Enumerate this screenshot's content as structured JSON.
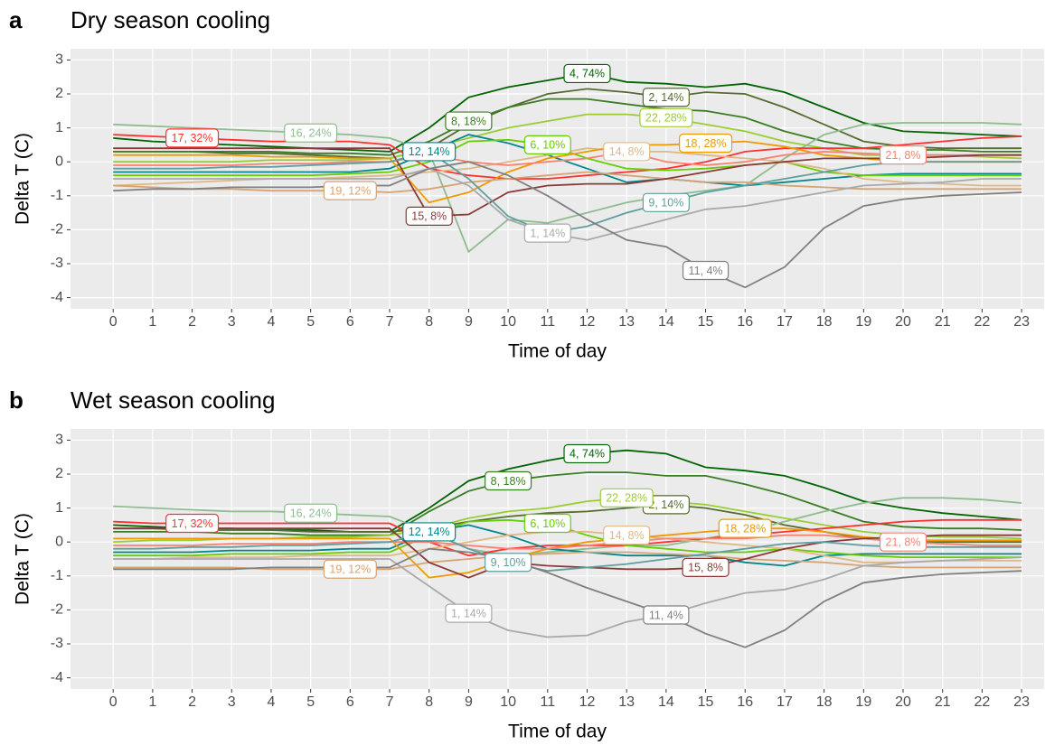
{
  "chart_data": [
    {
      "type": "line",
      "panel_label": "a",
      "title": "Dry season cooling",
      "x_label": "Time of day",
      "y_label": "Delta T (C)",
      "x": [
        0,
        1,
        2,
        3,
        4,
        5,
        6,
        7,
        8,
        9,
        10,
        11,
        12,
        13,
        14,
        15,
        16,
        17,
        18,
        19,
        20,
        21,
        22,
        23
      ],
      "xlim": [
        -1.08,
        23.57
      ],
      "ylim": [
        -4.33,
        3.33
      ],
      "xticks": [
        0,
        1,
        2,
        3,
        4,
        5,
        6,
        7,
        8,
        9,
        10,
        11,
        12,
        13,
        14,
        15,
        16,
        17,
        18,
        19,
        20,
        21,
        22,
        23
      ],
      "yticks": [
        -4,
        -3,
        -2,
        -1,
        0,
        1,
        2,
        3
      ],
      "grid": true,
      "series": [
        {
          "name": "4, 74%",
          "color": "#006400",
          "values": [
            0.7,
            0.6,
            0.55,
            0.5,
            0.45,
            0.4,
            0.35,
            0.3,
            1.0,
            1.9,
            2.2,
            2.4,
            2.6,
            2.35,
            2.3,
            2.2,
            2.3,
            2.05,
            1.6,
            1.15,
            0.9,
            0.85,
            0.8,
            0.75
          ]
        },
        {
          "name": "2, 14%",
          "color": "#556b2f",
          "values": [
            0.3,
            0.3,
            0.3,
            0.25,
            0.25,
            0.2,
            0.15,
            0.1,
            0.4,
            1.1,
            1.6,
            2.0,
            2.15,
            2.05,
            1.9,
            2.05,
            2.0,
            1.6,
            1.1,
            0.6,
            0.45,
            0.4,
            0.4,
            0.4
          ]
        },
        {
          "name": "8, 18%",
          "color": "#3b7d23",
          "values": [
            0.3,
            0.3,
            0.3,
            0.3,
            0.3,
            0.25,
            0.25,
            0.2,
            0.6,
            1.2,
            1.6,
            1.85,
            1.85,
            1.7,
            1.55,
            1.5,
            1.3,
            0.9,
            0.6,
            0.4,
            0.35,
            0.35,
            0.3,
            0.3
          ]
        },
        {
          "name": "22, 28%",
          "color": "#9acd32",
          "values": [
            0.0,
            0.0,
            0.0,
            0.0,
            0.05,
            0.05,
            0.05,
            0.1,
            0.4,
            0.7,
            1.0,
            1.2,
            1.4,
            1.4,
            1.3,
            1.1,
            0.9,
            0.6,
            0.4,
            0.2,
            0.2,
            0.2,
            0.15,
            0.1
          ]
        },
        {
          "name": "16, 24%",
          "color": "#8fbc8f",
          "values": [
            1.1,
            1.05,
            1.0,
            0.95,
            0.9,
            0.85,
            0.8,
            0.7,
            0.3,
            -2.65,
            -1.7,
            -1.8,
            -1.5,
            -1.2,
            -1.0,
            -0.85,
            -0.7,
            0.1,
            0.8,
            1.1,
            1.15,
            1.15,
            1.15,
            1.1
          ]
        },
        {
          "name": "17, 32%",
          "color": "#ff3030",
          "values": [
            0.8,
            0.75,
            0.7,
            0.65,
            0.6,
            0.6,
            0.6,
            0.5,
            -0.2,
            -0.4,
            -0.5,
            -0.5,
            -0.4,
            -0.3,
            -0.2,
            0.0,
            0.3,
            0.4,
            0.4,
            0.4,
            0.5,
            0.6,
            0.7,
            0.75
          ]
        },
        {
          "name": "12, 14%",
          "color": "#00868b",
          "values": [
            -0.3,
            -0.3,
            -0.3,
            -0.3,
            -0.3,
            -0.3,
            -0.3,
            -0.2,
            0.3,
            0.8,
            0.55,
            0.2,
            -0.2,
            -0.6,
            -0.5,
            -0.6,
            -0.7,
            -0.6,
            -0.5,
            -0.4,
            -0.35,
            -0.35,
            -0.35,
            -0.35
          ]
        },
        {
          "name": "6, 10%",
          "color": "#66cd00",
          "values": [
            -0.4,
            -0.4,
            -0.4,
            -0.4,
            -0.4,
            -0.4,
            -0.35,
            -0.3,
            0.0,
            0.6,
            0.65,
            0.5,
            0.1,
            -0.2,
            -0.25,
            -0.2,
            -0.1,
            0.0,
            -0.3,
            -0.4,
            -0.4,
            -0.4,
            -0.4,
            -0.4
          ]
        },
        {
          "name": "14, 8%",
          "color": "#deb887",
          "values": [
            -0.7,
            -0.65,
            -0.6,
            -0.55,
            -0.5,
            -0.5,
            -0.45,
            -0.4,
            -0.3,
            -0.2,
            0.0,
            0.2,
            0.4,
            0.3,
            0.3,
            0.2,
            0.1,
            0.0,
            -0.2,
            -0.5,
            -0.6,
            -0.65,
            -0.7,
            -0.7
          ]
        },
        {
          "name": "18, 28%",
          "color": "#ee9a00",
          "values": [
            0.2,
            0.2,
            0.2,
            0.2,
            0.15,
            0.15,
            0.1,
            0.1,
            -1.2,
            -0.9,
            -0.3,
            0.1,
            0.3,
            0.5,
            0.5,
            0.55,
            0.6,
            0.45,
            0.2,
            0.1,
            0.0,
            0.0,
            0.0,
            0.0
          ]
        },
        {
          "name": "21, 8%",
          "color": "#fa8072",
          "values": [
            -0.1,
            -0.1,
            -0.1,
            -0.1,
            -0.05,
            -0.05,
            0.0,
            0.0,
            0.2,
            0.0,
            -0.1,
            0.0,
            0.1,
            0.3,
            0.0,
            -0.1,
            0.0,
            0.2,
            0.3,
            0.25,
            0.2,
            0.2,
            0.2,
            0.2
          ]
        },
        {
          "name": "19, 12%",
          "color": "#d8a373",
          "values": [
            -0.7,
            -0.75,
            -0.8,
            -0.8,
            -0.85,
            -0.85,
            -0.85,
            -0.9,
            -0.8,
            -0.6,
            -0.5,
            -0.4,
            -0.3,
            -0.4,
            -0.5,
            -0.6,
            -0.6,
            -0.7,
            -0.75,
            -0.8,
            -0.8,
            -0.8,
            -0.8,
            -0.8
          ]
        },
        {
          "name": "15, 8%",
          "color": "#8b3a3a",
          "values": [
            0.4,
            0.4,
            0.4,
            0.4,
            0.4,
            0.4,
            0.4,
            0.4,
            -1.6,
            -1.55,
            -0.9,
            -0.7,
            -0.65,
            -0.65,
            -0.5,
            -0.3,
            -0.1,
            0.0,
            0.1,
            0.1,
            0.1,
            0.15,
            0.2,
            0.2
          ]
        },
        {
          "name": "9, 10%",
          "color": "#5f9ea0",
          "values": [
            -0.2,
            -0.2,
            -0.2,
            -0.15,
            -0.15,
            -0.1,
            -0.05,
            0.0,
            0.3,
            -0.5,
            -1.6,
            -2.1,
            -1.9,
            -1.5,
            -1.2,
            -0.9,
            -0.7,
            -0.5,
            -0.3,
            -0.1,
            0.0,
            0.0,
            0.0,
            0.0
          ]
        },
        {
          "name": "1, 14%",
          "color": "#a9a9a9",
          "values": [
            -0.5,
            -0.5,
            -0.5,
            -0.5,
            -0.5,
            -0.5,
            -0.5,
            -0.5,
            -0.2,
            -0.7,
            -1.7,
            -2.1,
            -2.3,
            -2.0,
            -1.7,
            -1.4,
            -1.3,
            -1.1,
            -0.9,
            -0.7,
            -0.65,
            -0.6,
            -0.5,
            -0.5
          ]
        },
        {
          "name": "11, 4%",
          "color": "#808080",
          "values": [
            -0.85,
            -0.8,
            -0.8,
            -0.75,
            -0.75,
            -0.75,
            -0.7,
            -0.7,
            -0.2,
            0.0,
            -0.4,
            -1.0,
            -1.7,
            -2.3,
            -2.5,
            -3.2,
            -3.7,
            -3.1,
            -1.95,
            -1.3,
            -1.1,
            -1.0,
            -0.95,
            -0.9
          ]
        }
      ]
    },
    {
      "type": "line",
      "panel_label": "b",
      "title": "Wet season cooling",
      "x_label": "Time of day",
      "y_label": "Delta T (C)",
      "x": [
        0,
        1,
        2,
        3,
        4,
        5,
        6,
        7,
        8,
        9,
        10,
        11,
        12,
        13,
        14,
        15,
        16,
        17,
        18,
        19,
        20,
        21,
        22,
        23
      ],
      "xlim": [
        -1.08,
        23.57
      ],
      "ylim": [
        -4.33,
        3.33
      ],
      "xticks": [
        0,
        1,
        2,
        3,
        4,
        5,
        6,
        7,
        8,
        9,
        10,
        11,
        12,
        13,
        14,
        15,
        16,
        17,
        18,
        19,
        20,
        21,
        22,
        23
      ],
      "yticks": [
        -4,
        -3,
        -2,
        -1,
        0,
        1,
        2,
        3
      ],
      "grid": true,
      "series": [
        {
          "name": "4, 74%",
          "color": "#006400",
          "values": [
            0.5,
            0.45,
            0.4,
            0.4,
            0.35,
            0.35,
            0.3,
            0.3,
            1.0,
            1.8,
            2.15,
            2.4,
            2.6,
            2.7,
            2.6,
            2.2,
            2.1,
            1.95,
            1.6,
            1.2,
            1.0,
            0.85,
            0.75,
            0.65
          ]
        },
        {
          "name": "2, 14%",
          "color": "#556b2f",
          "values": [
            0.4,
            0.4,
            0.35,
            0.35,
            0.35,
            0.3,
            0.3,
            0.3,
            0.4,
            0.6,
            0.75,
            0.85,
            0.9,
            1.0,
            1.1,
            1.0,
            0.8,
            0.5,
            0.3,
            0.1,
            0.0,
            0.0,
            0.0,
            0.0
          ]
        },
        {
          "name": "8, 18%",
          "color": "#3b7d23",
          "values": [
            0.3,
            0.3,
            0.3,
            0.25,
            0.25,
            0.2,
            0.2,
            0.2,
            0.9,
            1.5,
            1.8,
            1.95,
            2.05,
            2.05,
            1.95,
            1.95,
            1.7,
            1.4,
            1.0,
            0.6,
            0.45,
            0.4,
            0.4,
            0.35
          ]
        },
        {
          "name": "22, 28%",
          "color": "#9acd32",
          "values": [
            0.0,
            0.05,
            0.05,
            0.1,
            0.1,
            0.15,
            0.15,
            0.2,
            0.4,
            0.7,
            0.9,
            1.0,
            1.2,
            1.3,
            1.2,
            1.1,
            0.9,
            0.7,
            0.5,
            0.3,
            0.2,
            0.15,
            0.15,
            0.1
          ]
        },
        {
          "name": "16, 24%",
          "color": "#8fbc8f",
          "values": [
            1.05,
            1.0,
            0.95,
            0.9,
            0.9,
            0.85,
            0.8,
            0.75,
            0.3,
            -0.2,
            -0.4,
            -0.3,
            -0.2,
            -0.1,
            -0.1,
            0.1,
            0.3,
            0.6,
            0.9,
            1.15,
            1.3,
            1.3,
            1.25,
            1.15
          ]
        },
        {
          "name": "17, 32%",
          "color": "#ff3030",
          "values": [
            0.6,
            0.55,
            0.55,
            0.55,
            0.55,
            0.55,
            0.55,
            0.55,
            0.0,
            -0.4,
            -0.2,
            -0.1,
            -0.1,
            -0.1,
            0.0,
            0.1,
            0.2,
            0.3,
            0.4,
            0.5,
            0.6,
            0.65,
            0.65,
            0.65
          ]
        },
        {
          "name": "12, 14%",
          "color": "#00868b",
          "values": [
            -0.3,
            -0.3,
            -0.3,
            -0.25,
            -0.25,
            -0.25,
            -0.2,
            -0.2,
            0.3,
            0.5,
            0.2,
            -0.2,
            -0.3,
            -0.4,
            -0.4,
            -0.4,
            -0.6,
            -0.7,
            -0.4,
            -0.35,
            -0.35,
            -0.35,
            -0.35,
            -0.35
          ]
        },
        {
          "name": "6, 10%",
          "color": "#66cd00",
          "values": [
            -0.4,
            -0.4,
            -0.4,
            -0.35,
            -0.35,
            -0.35,
            -0.3,
            -0.3,
            0.2,
            0.6,
            0.65,
            0.55,
            0.2,
            -0.1,
            -0.2,
            -0.3,
            -0.3,
            -0.2,
            -0.3,
            -0.4,
            -0.45,
            -0.45,
            -0.45,
            -0.45
          ]
        },
        {
          "name": "14, 8%",
          "color": "#deb887",
          "values": [
            -0.5,
            -0.5,
            -0.45,
            -0.45,
            -0.45,
            -0.4,
            -0.4,
            -0.4,
            -0.2,
            0.0,
            0.2,
            0.3,
            0.3,
            0.2,
            0.1,
            0.0,
            -0.1,
            -0.2,
            -0.4,
            -0.6,
            -0.6,
            -0.55,
            -0.55,
            -0.55
          ]
        },
        {
          "name": "18, 28%",
          "color": "#ee9a00",
          "values": [
            0.1,
            0.1,
            0.1,
            0.1,
            0.1,
            0.1,
            0.1,
            0.1,
            -1.05,
            -0.9,
            -0.5,
            -0.2,
            0.0,
            0.1,
            0.2,
            0.3,
            0.4,
            0.4,
            0.3,
            0.15,
            0.05,
            0.05,
            0.05,
            0.05
          ]
        },
        {
          "name": "21, 8%",
          "color": "#fa8072",
          "values": [
            -0.1,
            -0.1,
            -0.1,
            -0.05,
            -0.05,
            -0.05,
            0.0,
            0.0,
            0.0,
            -0.1,
            -0.2,
            -0.2,
            -0.1,
            0.0,
            0.1,
            0.1,
            0.1,
            0.2,
            0.2,
            0.1,
            0.0,
            -0.05,
            -0.1,
            -0.1
          ]
        },
        {
          "name": "19, 12%",
          "color": "#d8a373",
          "values": [
            -0.75,
            -0.75,
            -0.75,
            -0.75,
            -0.8,
            -0.8,
            -0.8,
            -0.8,
            -0.6,
            -0.5,
            -0.4,
            -0.35,
            -0.3,
            -0.3,
            -0.35,
            -0.4,
            -0.5,
            -0.55,
            -0.6,
            -0.7,
            -0.75,
            -0.75,
            -0.75,
            -0.75
          ]
        },
        {
          "name": "15, 8%",
          "color": "#8b3a3a",
          "values": [
            0.4,
            0.4,
            0.4,
            0.4,
            0.4,
            0.4,
            0.4,
            0.4,
            -0.6,
            -1.05,
            -0.6,
            -0.7,
            -0.75,
            -0.8,
            -0.8,
            -0.75,
            -0.5,
            -0.2,
            0.0,
            0.1,
            0.15,
            0.2,
            0.2,
            0.2
          ]
        },
        {
          "name": "9, 10%",
          "color": "#5f9ea0",
          "values": [
            -0.2,
            -0.2,
            -0.15,
            -0.15,
            -0.1,
            -0.1,
            -0.05,
            0.0,
            0.3,
            -0.2,
            -0.6,
            -0.85,
            -0.75,
            -0.65,
            -0.5,
            -0.35,
            -0.2,
            -0.05,
            0.0,
            -0.1,
            -0.15,
            -0.15,
            -0.15,
            -0.15
          ]
        },
        {
          "name": "1, 14%",
          "color": "#a9a9a9",
          "values": [
            -0.5,
            -0.5,
            -0.5,
            -0.5,
            -0.5,
            -0.5,
            -0.5,
            -0.5,
            -1.3,
            -2.1,
            -2.6,
            -2.8,
            -2.75,
            -2.35,
            -2.15,
            -1.8,
            -1.5,
            -1.4,
            -1.1,
            -0.7,
            -0.6,
            -0.55,
            -0.5,
            -0.45
          ]
        },
        {
          "name": "11, 4%",
          "color": "#808080",
          "values": [
            -0.8,
            -0.8,
            -0.8,
            -0.8,
            -0.75,
            -0.75,
            -0.75,
            -0.75,
            -0.2,
            -0.3,
            -0.5,
            -0.9,
            -1.35,
            -1.75,
            -2.15,
            -2.7,
            -3.1,
            -2.6,
            -1.75,
            -1.2,
            -1.05,
            -0.95,
            -0.9,
            -0.85
          ]
        }
      ]
    }
  ]
}
